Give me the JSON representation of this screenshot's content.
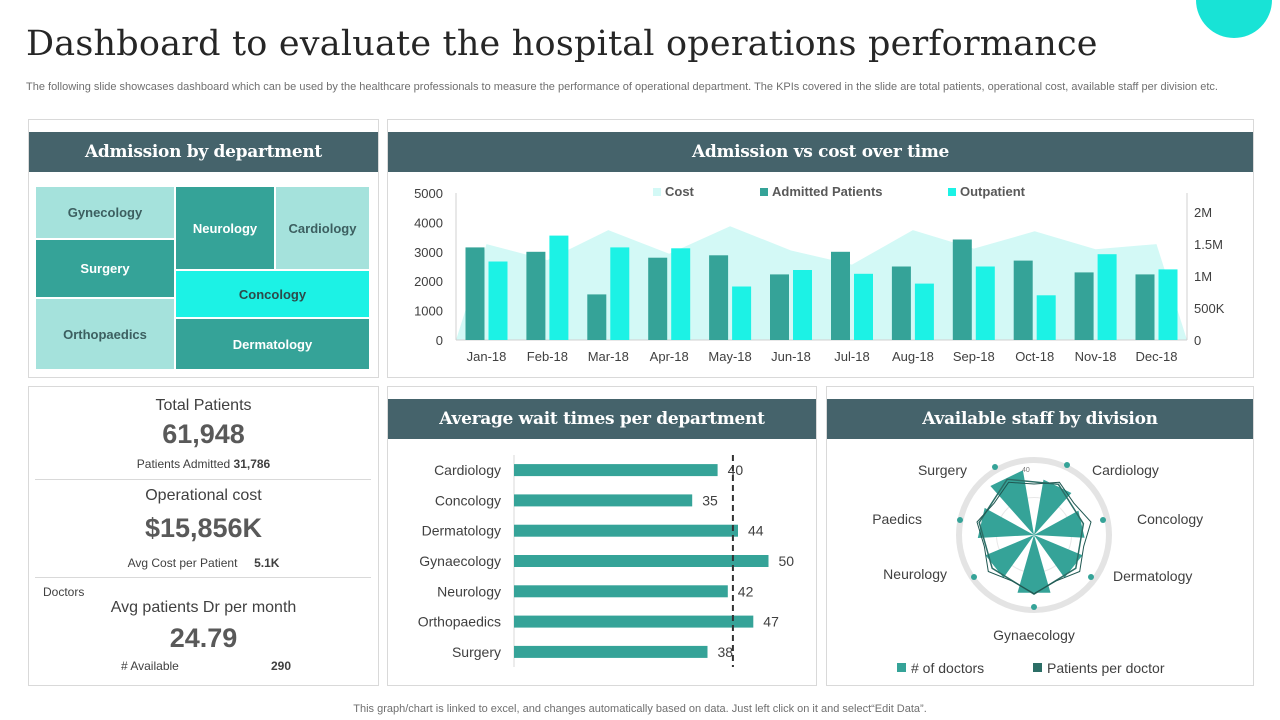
{
  "title": "Dashboard to evaluate the hospital operations performance",
  "subtitle": "The following slide showcases dashboard which can be used by the healthcare professionals to measure the performance of operational department. The KPIs covered in the slide are total patients, operational cost, available staff per division etc.",
  "footer": "This graph/chart is linked to excel,  and changes automatically based on data. Just left click on it and select“Edit Data”.",
  "panels": {
    "admission": "Admission by department",
    "time": "Admission vs cost over time",
    "wait": "Average wait times per department",
    "staff": "Available staff by division"
  },
  "kpis": {
    "total_label": "Total Patients",
    "total_value": "61,948",
    "admitted_label": "Patients Admitted",
    "admitted_value": "31,786",
    "cost_label": "Operational cost",
    "cost_value": "$15,856K",
    "avg_cost_label": "Avg Cost per Patient",
    "avg_cost_value": "5.1K",
    "doctors_label": "Doctors",
    "avg_dr_label": "Avg patients Dr per month",
    "avg_dr_value": "24.79",
    "available_label": "# Available",
    "available_value": "290"
  },
  "colors": {
    "header": "#45636B",
    "dark": "#35A398",
    "cyan": "#1CF2E5",
    "light": "#A5E2DC",
    "area": "#D3F9F6",
    "accent": "#18E3D6"
  },
  "chart_data": [
    {
      "type": "treemap",
      "title": "Admission by department",
      "categories": [
        "Gynecology",
        "Surgery",
        "Orthopaedics",
        "Neurology",
        "Cardiology",
        "Concology",
        "Dermatology"
      ]
    },
    {
      "type": "bar",
      "title": "Admission vs cost over time",
      "categories": [
        "Jan-18",
        "Feb-18",
        "Mar-18",
        "Apr-18",
        "May-18",
        "Jun-18",
        "Jul-18",
        "Aug-18",
        "Sep-18",
        "Oct-18",
        "Nov-18",
        "Dec-18"
      ],
      "ylim": [
        0,
        5000
      ],
      "y_ticks": [
        "5000",
        "4000",
        "3000",
        "2000",
        "1000",
        "0"
      ],
      "y2lim": [
        0,
        2300000
      ],
      "y2_ticks": [
        "2M",
        "1.5M",
        "1M",
        "500K",
        "0"
      ],
      "series": [
        {
          "name": "Cost",
          "kind": "area",
          "axis": "right",
          "values": [
            1500000,
            1250000,
            1720000,
            1350000,
            1780000,
            1400000,
            1180000,
            1720000,
            1430000,
            1700000,
            1420000,
            1500000
          ]
        },
        {
          "name": "Admitted Patients",
          "kind": "bar",
          "axis": "left",
          "values": [
            3150,
            3000,
            1550,
            2800,
            2880,
            2230,
            3000,
            2500,
            3420,
            2700,
            2300,
            2230
          ]
        },
        {
          "name": "Outpatient",
          "kind": "bar",
          "axis": "left",
          "values": [
            2670,
            3550,
            3150,
            3120,
            1820,
            2380,
            2250,
            1920,
            2500,
            1520,
            2920,
            2400
          ]
        }
      ]
    },
    {
      "type": "bar",
      "orientation": "horizontal",
      "title": "Average wait times per department",
      "categories": [
        "Cardiology",
        "Concology",
        "Dermatology",
        "Gynaecology",
        "Neurology",
        "Orthopaedics",
        "Surgery"
      ],
      "values": [
        40,
        35,
        44,
        50,
        42,
        47,
        38
      ],
      "xlim": [
        0,
        55
      ],
      "reference_line": 43
    },
    {
      "type": "radar",
      "title": "Available staff by division",
      "categories": [
        "Cardiology",
        "Concology",
        "Dermatology",
        "Gynaecology",
        "Neurology",
        "Paedics",
        "Surgery"
      ],
      "rlim": [
        0,
        40
      ],
      "r_tick_label": "40",
      "series": [
        {
          "name": "# of doctors",
          "values": [
            30,
            27,
            28,
            32,
            28,
            30,
            35
          ]
        },
        {
          "name": "Patients per doctor",
          "values": [
            20,
            18,
            19,
            21,
            19,
            20,
            22
          ]
        }
      ]
    }
  ]
}
